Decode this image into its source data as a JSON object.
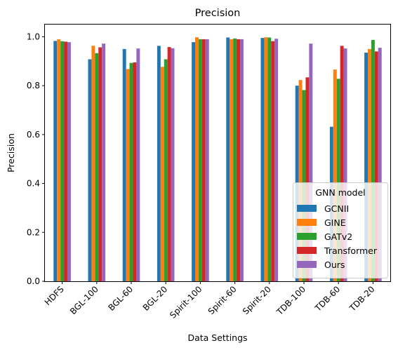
{
  "chart_data": {
    "type": "bar",
    "title": "Precision",
    "xlabel": "Data Settings",
    "ylabel": "Precision",
    "ylim": [
      0,
      1.05
    ],
    "yticks": [
      "0.0",
      "0.2",
      "0.4",
      "0.6",
      "0.8",
      "1.0"
    ],
    "ytick_values": [
      0,
      0.2,
      0.4,
      0.6,
      0.8,
      1.0
    ],
    "categories": [
      "HDFS",
      "BGL-100",
      "BGL-60",
      "BGL-20",
      "Spirit-100",
      "Spirit-60",
      "Spirit-20",
      "TDB-100",
      "TDB-60",
      "TDB-20"
    ],
    "legend": {
      "title": "GNN model",
      "placement": "lower-right"
    },
    "grid": false,
    "series": [
      {
        "name": "GCNII",
        "color": "#1f77b4",
        "values": [
          0.983,
          0.908,
          0.95,
          0.963,
          0.978,
          0.997,
          0.995,
          0.8,
          0.632,
          0.935
        ]
      },
      {
        "name": "GINE",
        "color": "#ff7f0e",
        "values": [
          0.99,
          0.963,
          0.868,
          0.877,
          0.998,
          0.99,
          0.998,
          0.823,
          0.866,
          0.95
        ]
      },
      {
        "name": "GATv2",
        "color": "#2ca02c",
        "values": [
          0.982,
          0.933,
          0.893,
          0.908,
          0.99,
          0.993,
          0.997,
          0.782,
          0.828,
          0.987
        ]
      },
      {
        "name": "Transformer",
        "color": "#d62728",
        "values": [
          0.98,
          0.957,
          0.895,
          0.958,
          0.99,
          0.99,
          0.982,
          0.834,
          0.963,
          0.94
        ]
      },
      {
        "name": "Ours",
        "color": "#9467bd",
        "values": [
          0.978,
          0.972,
          0.952,
          0.953,
          0.99,
          0.99,
          0.992,
          0.972,
          0.952,
          0.955
        ]
      }
    ]
  }
}
